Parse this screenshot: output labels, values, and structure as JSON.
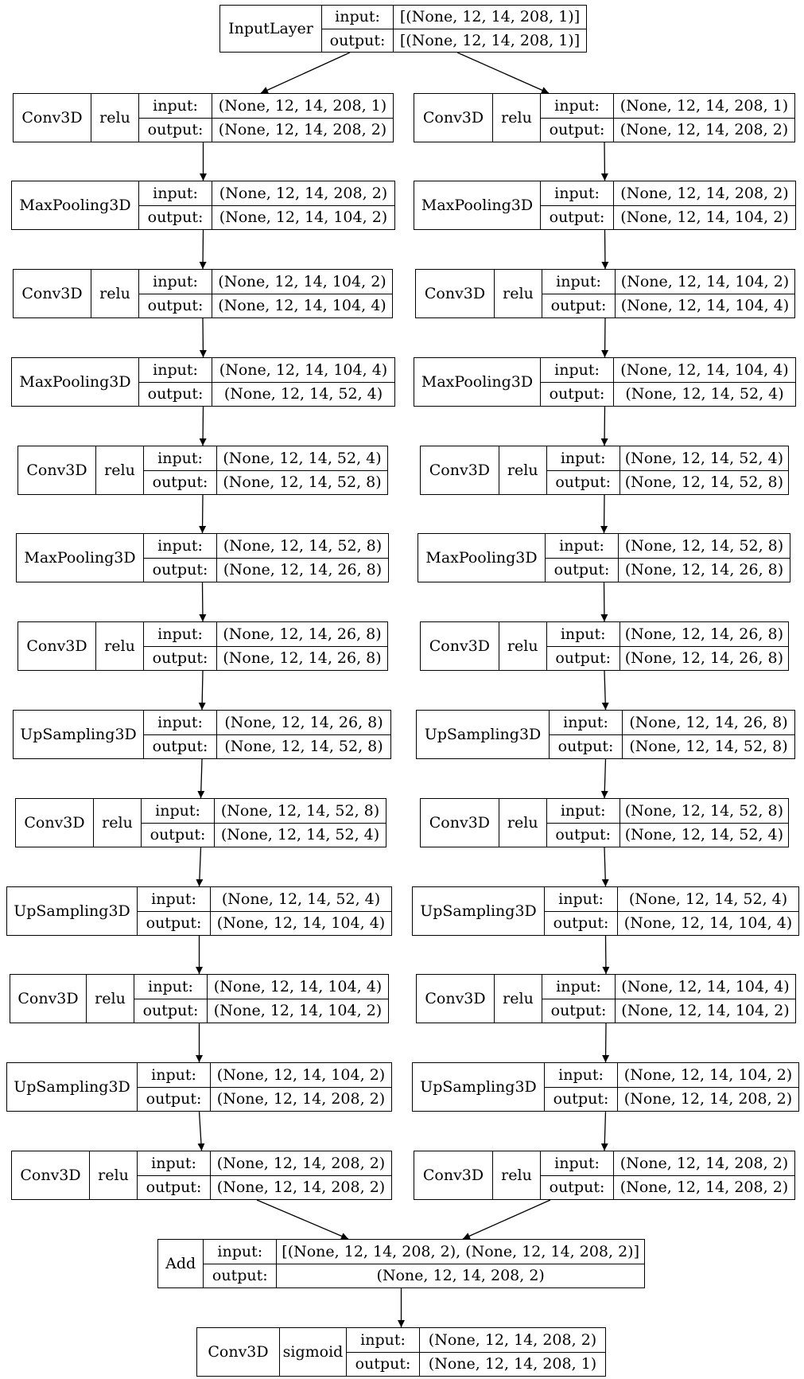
{
  "nodes": [
    {
      "id": "in",
      "type": "InputLayer",
      "act": "",
      "input": "[(None, 12, 14, 208, 1)]",
      "output": "[(None, 12, 14, 208, 1)]"
    },
    {
      "id": "l0",
      "type": "Conv3D",
      "act": "relu",
      "input": "(None, 12, 14, 208, 1)",
      "output": "(None, 12, 14, 208, 2)"
    },
    {
      "id": "l1",
      "type": "MaxPooling3D",
      "act": "",
      "input": "(None, 12, 14, 208, 2)",
      "output": "(None, 12, 14, 104, 2)"
    },
    {
      "id": "l2",
      "type": "Conv3D",
      "act": "relu",
      "input": "(None, 12, 14, 104, 2)",
      "output": "(None, 12, 14, 104, 4)"
    },
    {
      "id": "l3",
      "type": "MaxPooling3D",
      "act": "",
      "input": "(None, 12, 14, 104, 4)",
      "output": "(None, 12, 14, 52, 4)"
    },
    {
      "id": "l4",
      "type": "Conv3D",
      "act": "relu",
      "input": "(None, 12, 14, 52, 4)",
      "output": "(None, 12, 14, 52, 8)"
    },
    {
      "id": "l5",
      "type": "MaxPooling3D",
      "act": "",
      "input": "(None, 12, 14, 52, 8)",
      "output": "(None, 12, 14, 26, 8)"
    },
    {
      "id": "l6",
      "type": "Conv3D",
      "act": "relu",
      "input": "(None, 12, 14, 26, 8)",
      "output": "(None, 12, 14, 26, 8)"
    },
    {
      "id": "l7",
      "type": "UpSampling3D",
      "act": "",
      "input": "(None, 12, 14, 26, 8)",
      "output": "(None, 12, 14, 52, 8)"
    },
    {
      "id": "l8",
      "type": "Conv3D",
      "act": "relu",
      "input": "(None, 12, 14, 52, 8)",
      "output": "(None, 12, 14, 52, 4)"
    },
    {
      "id": "l9",
      "type": "UpSampling3D",
      "act": "",
      "input": "(None, 12, 14, 52, 4)",
      "output": "(None, 12, 14, 104, 4)"
    },
    {
      "id": "l10",
      "type": "Conv3D",
      "act": "relu",
      "input": "(None, 12, 14, 104, 4)",
      "output": "(None, 12, 14, 104, 2)"
    },
    {
      "id": "l11",
      "type": "UpSampling3D",
      "act": "",
      "input": "(None, 12, 14, 104, 2)",
      "output": "(None, 12, 14, 208, 2)"
    },
    {
      "id": "l12",
      "type": "Conv3D",
      "act": "relu",
      "input": "(None, 12, 14, 208, 2)",
      "output": "(None, 12, 14, 208, 2)"
    },
    {
      "id": "r0",
      "type": "Conv3D",
      "act": "relu",
      "input": "(None, 12, 14, 208, 1)",
      "output": "(None, 12, 14, 208, 2)"
    },
    {
      "id": "r1",
      "type": "MaxPooling3D",
      "act": "",
      "input": "(None, 12, 14, 208, 2)",
      "output": "(None, 12, 14, 104, 2)"
    },
    {
      "id": "r2",
      "type": "Conv3D",
      "act": "relu",
      "input": "(None, 12, 14, 104, 2)",
      "output": "(None, 12, 14, 104, 4)"
    },
    {
      "id": "r3",
      "type": "MaxPooling3D",
      "act": "",
      "input": "(None, 12, 14, 104, 4)",
      "output": "(None, 12, 14, 52, 4)"
    },
    {
      "id": "r4",
      "type": "Conv3D",
      "act": "relu",
      "input": "(None, 12, 14, 52, 4)",
      "output": "(None, 12, 14, 52, 8)"
    },
    {
      "id": "r5",
      "type": "MaxPooling3D",
      "act": "",
      "input": "(None, 12, 14, 52, 8)",
      "output": "(None, 12, 14, 26, 8)"
    },
    {
      "id": "r6",
      "type": "Conv3D",
      "act": "relu",
      "input": "(None, 12, 14, 26, 8)",
      "output": "(None, 12, 14, 26, 8)"
    },
    {
      "id": "r7",
      "type": "UpSampling3D",
      "act": "",
      "input": "(None, 12, 14, 26, 8)",
      "output": "(None, 12, 14, 52, 8)"
    },
    {
      "id": "r8",
      "type": "Conv3D",
      "act": "relu",
      "input": "(None, 12, 14, 52, 8)",
      "output": "(None, 12, 14, 52, 4)"
    },
    {
      "id": "r9",
      "type": "UpSampling3D",
      "act": "",
      "input": "(None, 12, 14, 52, 4)",
      "output": "(None, 12, 14, 104, 4)"
    },
    {
      "id": "r10",
      "type": "Conv3D",
      "act": "relu",
      "input": "(None, 12, 14, 104, 4)",
      "output": "(None, 12, 14, 104, 2)"
    },
    {
      "id": "r11",
      "type": "UpSampling3D",
      "act": "",
      "input": "(None, 12, 14, 104, 2)",
      "output": "(None, 12, 14, 208, 2)"
    },
    {
      "id": "r12",
      "type": "Conv3D",
      "act": "relu",
      "input": "(None, 12, 14, 208, 2)",
      "output": "(None, 12, 14, 208, 2)"
    },
    {
      "id": "add",
      "type": "Add",
      "act": "",
      "input": "[(None, 12, 14, 208, 2), (None, 12, 14, 208, 2)]",
      "output": "(None, 12, 14, 208, 2)"
    },
    {
      "id": "out",
      "type": "Conv3D",
      "act": "sigmoid",
      "input": "(None, 12, 14, 208, 2)",
      "output": "(None, 12, 14, 208, 1)"
    }
  ],
  "edges": [
    [
      "in",
      "l0"
    ],
    [
      "in",
      "r0"
    ],
    [
      "l0",
      "l1"
    ],
    [
      "l1",
      "l2"
    ],
    [
      "l2",
      "l3"
    ],
    [
      "l3",
      "l4"
    ],
    [
      "l4",
      "l5"
    ],
    [
      "l5",
      "l6"
    ],
    [
      "l6",
      "l7"
    ],
    [
      "l7",
      "l8"
    ],
    [
      "l8",
      "l9"
    ],
    [
      "l9",
      "l10"
    ],
    [
      "l10",
      "l11"
    ],
    [
      "l11",
      "l12"
    ],
    [
      "r0",
      "r1"
    ],
    [
      "r1",
      "r2"
    ],
    [
      "r2",
      "r3"
    ],
    [
      "r3",
      "r4"
    ],
    [
      "r4",
      "r5"
    ],
    [
      "r5",
      "r6"
    ],
    [
      "r6",
      "r7"
    ],
    [
      "r7",
      "r8"
    ],
    [
      "r8",
      "r9"
    ],
    [
      "r9",
      "r10"
    ],
    [
      "r10",
      "r11"
    ],
    [
      "r11",
      "r12"
    ],
    [
      "l12",
      "add"
    ],
    [
      "r12",
      "add"
    ],
    [
      "add",
      "out"
    ]
  ],
  "labels": {
    "input": "input:",
    "output": "output:"
  }
}
